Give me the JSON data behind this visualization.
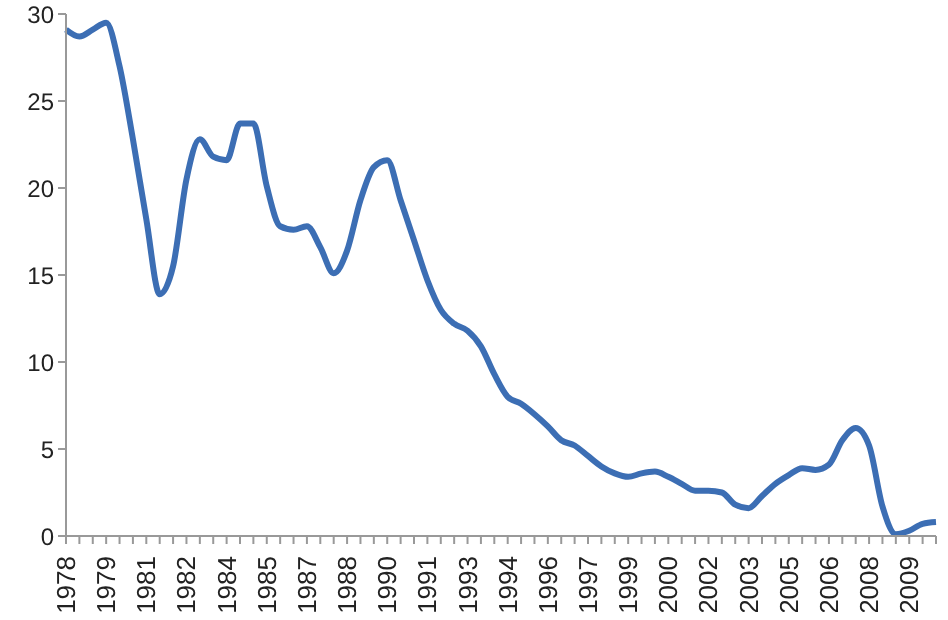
{
  "chart_data": {
    "type": "line",
    "categories": [
      "1978",
      null,
      null,
      "1979",
      null,
      null,
      "1981",
      null,
      null,
      "1982",
      null,
      null,
      "1984",
      null,
      null,
      "1985",
      null,
      null,
      "1987",
      null,
      null,
      "1988",
      null,
      null,
      "1990",
      null,
      null,
      "1991",
      null,
      null,
      "1993",
      null,
      null,
      "1994",
      null,
      null,
      "1996",
      null,
      null,
      "1997",
      null,
      null,
      "1999",
      null,
      null,
      "2000",
      null,
      null,
      "2002",
      null,
      null,
      "2003",
      null,
      null,
      "2005",
      null,
      null,
      "2006",
      null,
      null,
      "2008",
      null,
      null,
      "2009",
      null,
      null
    ],
    "series": [
      {
        "color": "#3c6eb4",
        "values": [
          29.1,
          28.7,
          29.1,
          29.5,
          27,
          22.8,
          18.2,
          13.9,
          15.5,
          20.5,
          22.8,
          21.8,
          21.6,
          23.7,
          23.7,
          20.1,
          17.8,
          17.6,
          17.8,
          16.6,
          15.1,
          16.4,
          19.3,
          21.2,
          21.6,
          19.3,
          17,
          14.7,
          13,
          12.2,
          11.8,
          10.9,
          9.3,
          8,
          7.6,
          7,
          6.3,
          5.5,
          5.2,
          4.6,
          4,
          3.6,
          3.4,
          3.6,
          3.7,
          3.4,
          3,
          2.6,
          2.6,
          2.5,
          1.8,
          1.6,
          2.3,
          3,
          3.5,
          3.9,
          3.8,
          4.1,
          5.5,
          6.2,
          5.2,
          1.7,
          0.1,
          0.3,
          0.7,
          0.8
        ]
      }
    ],
    "ylim": [
      0,
      30
    ],
    "yticks": [
      0,
      5,
      10,
      15,
      20,
      25,
      30
    ],
    "grid": false,
    "legend": false,
    "marker": "none",
    "line_style": "solid"
  }
}
